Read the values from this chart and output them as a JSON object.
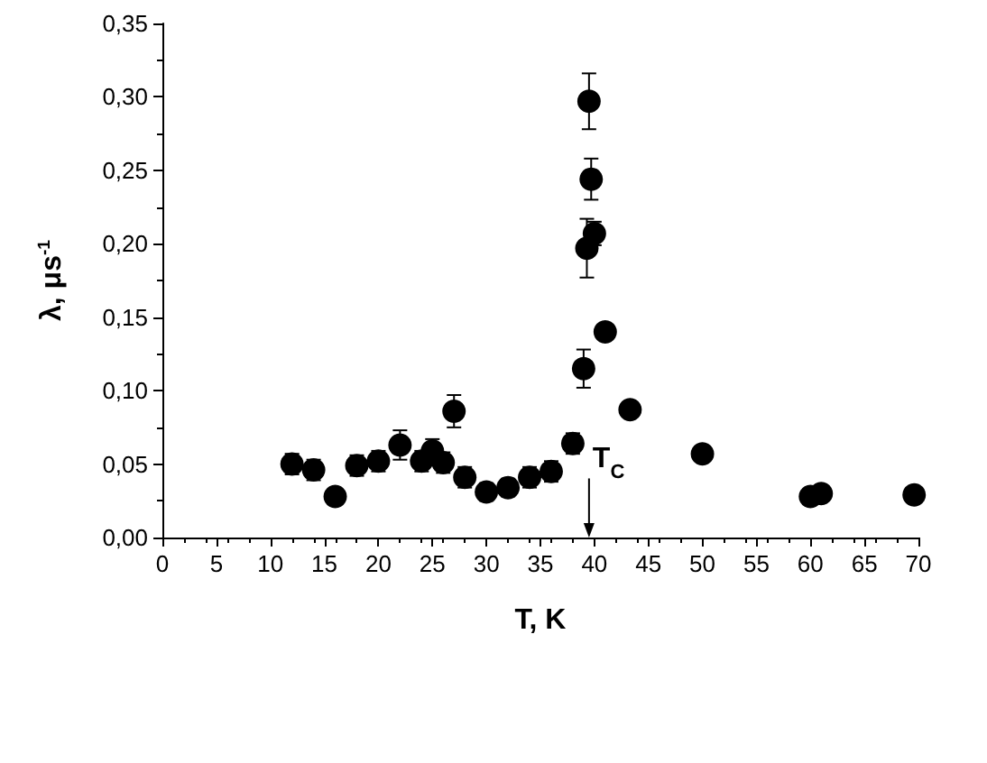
{
  "chart_data": {
    "type": "scatter",
    "xlabel": "T, K",
    "ylabel": "λ, μs$^{-1}$",
    "x": [
      12,
      14,
      16,
      18,
      20,
      22,
      24,
      25,
      26,
      27,
      28,
      30,
      32,
      34,
      36,
      38,
      39,
      39.3,
      39.5,
      39.7,
      40,
      41,
      43.3,
      50,
      60,
      61,
      69.6
    ],
    "values": [
      0.05,
      0.046,
      0.028,
      0.049,
      0.052,
      0.063,
      0.052,
      0.059,
      0.051,
      0.086,
      0.041,
      0.031,
      0.034,
      0.041,
      0.045,
      0.064,
      0.115,
      0.197,
      0.297,
      0.244,
      0.207,
      0.14,
      0.087,
      0.057,
      0.028,
      0.03,
      0.029
    ],
    "errors": [
      0.007,
      0.007,
      null,
      0.007,
      0.007,
      0.01,
      0.007,
      0.008,
      0.007,
      0.011,
      0.007,
      0.006,
      0.006,
      0.007,
      0.007,
      0.007,
      0.013,
      0.02,
      0.019,
      0.014,
      0.008,
      null,
      null,
      null,
      null,
      null,
      null
    ],
    "color": "#000000",
    "marker": "circle",
    "grid": false,
    "xlim": [
      0,
      70
    ],
    "xticks": [
      0,
      5,
      10,
      15,
      20,
      25,
      30,
      35,
      40,
      45,
      50,
      55,
      60,
      65,
      70
    ],
    "ylim": [
      0,
      0.35
    ],
    "yticks": [
      {
        "value": 0,
        "label": "0,00"
      },
      {
        "value": 0.05,
        "label": "0,05"
      },
      {
        "value": 0.1,
        "label": "0,10"
      },
      {
        "value": 0.15,
        "label": "0,15"
      },
      {
        "value": 0.2,
        "label": "0,20"
      },
      {
        "value": 0.25,
        "label": "0,25"
      },
      {
        "value": 0.3,
        "label": "0,30"
      },
      {
        "value": 0.35,
        "label": "0,35"
      }
    ],
    "ref_lines": [
      {
        "axis": "x",
        "value": 39.5,
        "label": "T$_{C}$"
      }
    ]
  }
}
